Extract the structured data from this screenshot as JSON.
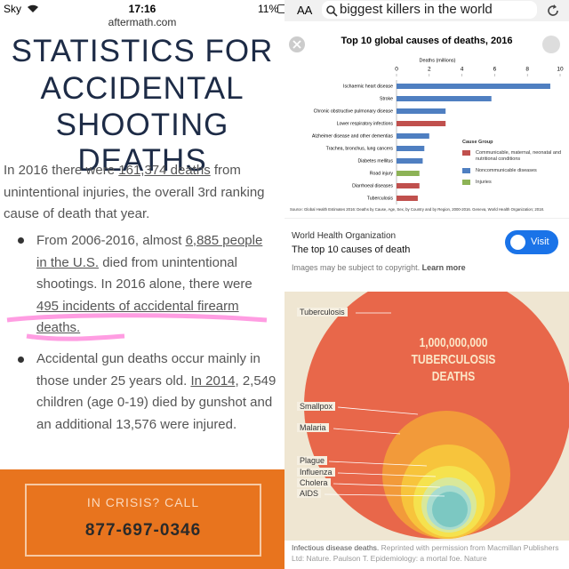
{
  "left": {
    "status": {
      "carrier": "Sky",
      "time": "17:16",
      "battery": "11%",
      "url": "aftermath.com"
    },
    "title": [
      "STATISTICS FOR",
      "ACCIDENTAL",
      "SHOOTING DEATHS"
    ],
    "intro": [
      "In 2016 there were ",
      "161,374 deaths",
      " from unintentional injuries, the overall 3rd ranking cause of death that year."
    ],
    "bullets": [
      [
        "From 2006-2016, almost ",
        "6,885 people in the U.S.",
        " died from unintentional shootings. In 2016 alone, there were ",
        "495 incidents of accidental firearm deaths."
      ],
      [
        "Accidental gun deaths occur mainly in those under 25 years old. ",
        "In 2014",
        ", 2,549 children (age 0-19) died by gunshot and an additional 13,576 were injured."
      ]
    ],
    "crisis": {
      "label": "IN CRISIS? CALL",
      "phone": "877-697-0346"
    }
  },
  "right": {
    "search": {
      "aa": "AA",
      "query": "biggest killers in the world"
    },
    "result": {
      "site": "World Health Organization",
      "page_title": "The top 10 causes of death",
      "copyright": "Images may be subject to copyright.",
      "learn_more": "Learn more",
      "visit": "Visit"
    },
    "diagram": {
      "headline": [
        "1,000,000,000",
        "TUBERCULOSIS",
        "DEATHS"
      ],
      "labels": [
        "Tuberculosis",
        "Smallpox",
        "Malaria",
        "Plague",
        "Influenza",
        "Cholera",
        "AIDS"
      ],
      "caption_bold": "Infectious disease deaths.",
      "caption": " Reprinted with permission from Macmillan Publishers Ltd: Nature. Paulson T. Epidemiology: a mortal foe. Nature"
    }
  },
  "chart_data": {
    "type": "bar",
    "title": "Top 10 global causes of deaths, 2016",
    "x_label": "Deaths (millions)",
    "categories": [
      "Ischaemic heart disease",
      "Stroke",
      "Chronic obstructive pulmonary disease",
      "Lower respiratory infections",
      "Alzheimer disease and other dementias",
      "Trachea, bronchus, lung cancers",
      "Diabetes mellitus",
      "Road injury",
      "Diarrhoeal diseases",
      "Tuberculosis"
    ],
    "values": [
      9.4,
      5.8,
      3.0,
      3.0,
      2.0,
      1.7,
      1.6,
      1.4,
      1.4,
      1.3
    ],
    "colors": [
      "#4f7fc1",
      "#4f7fc1",
      "#4f7fc1",
      "#c0504d",
      "#4f7fc1",
      "#4f7fc1",
      "#4f7fc1",
      "#8db356",
      "#c0504d",
      "#c0504d"
    ],
    "xlim": [
      0,
      10
    ],
    "xticks": [
      0,
      2,
      4,
      6,
      8,
      10
    ],
    "legend": {
      "title": "Cause Group",
      "entries": [
        {
          "name": "Communicable, maternal, neonatal and nutritional conditions",
          "color": "#c0504d"
        },
        {
          "name": "Noncommunicable diseases",
          "color": "#4f7fc1"
        },
        {
          "name": "Injuries",
          "color": "#8db356"
        }
      ]
    },
    "source": "Source: Global Health Estimates 2016: Deaths by Cause, Age, Sex, by Country and by Region, 2000-2016. Geneva, World Health Organization; 2018."
  }
}
